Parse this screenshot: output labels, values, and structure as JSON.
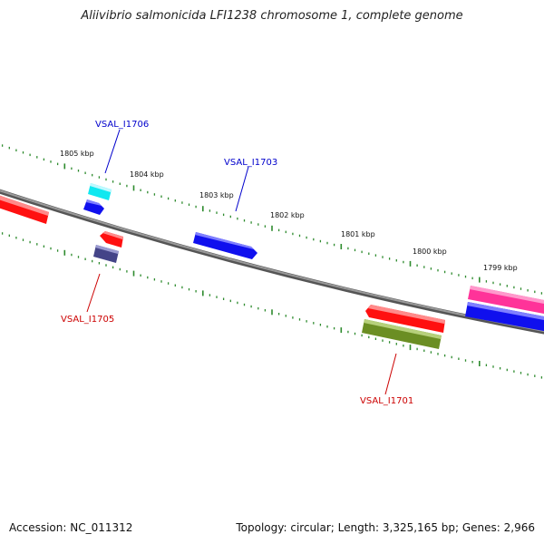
{
  "title": "Aliivibrio salmonicida LFI1238 chromosome 1, complete genome",
  "footer": {
    "accession": "Accession: NC_011312",
    "summary": "Topology: circular; Length: 3,325,165 bp; Genes: 2,966"
  },
  "colors": {
    "backbone": "#7a7a7a",
    "tick": "#2e8b2e",
    "label_forward": "#0000cc",
    "label_reverse": "#cc0000",
    "red": "#ff1010",
    "blue": "#1010ee",
    "cyan": "#10e8f0",
    "navy": "#444488",
    "olive": "#6b8e23",
    "magenta": "#ff3399"
  },
  "ruler": {
    "unit": "kbp",
    "labels": [
      {
        "kbp": 1805,
        "text": "1805 kbp"
      },
      {
        "kbp": 1804,
        "text": "1804 kbp"
      },
      {
        "kbp": 1803,
        "text": "1803 kbp"
      },
      {
        "kbp": 1802,
        "text": "1802 kbp"
      },
      {
        "kbp": 1801,
        "text": "1801 kbp"
      },
      {
        "kbp": 1800,
        "text": "1800 kbp"
      },
      {
        "kbp": 1799,
        "text": "1799 kbp"
      }
    ]
  },
  "genes": [
    {
      "id": "VSAL_I1706",
      "label": "VSAL_I1706",
      "strand": "forward"
    },
    {
      "id": "VSAL_I1703",
      "label": "VSAL_I1703",
      "strand": "forward"
    },
    {
      "id": "VSAL_I1705",
      "label": "VSAL_I1705",
      "strand": "reverse"
    },
    {
      "id": "VSAL_I1701",
      "label": "VSAL_I1701",
      "strand": "reverse"
    }
  ]
}
